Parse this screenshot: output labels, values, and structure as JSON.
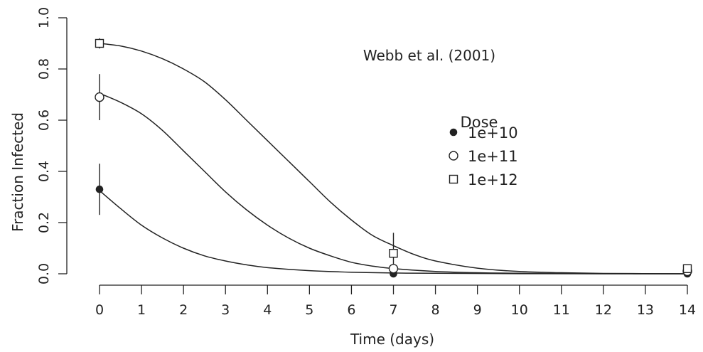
{
  "chart_data": {
    "type": "scatter",
    "xlabel": "Time (days)",
    "ylabel": "Fraction Infected",
    "xlim": [
      0,
      14
    ],
    "ylim": [
      0,
      1
    ],
    "x_ticks": [
      0,
      1,
      2,
      3,
      4,
      5,
      6,
      7,
      8,
      9,
      10,
      11,
      12,
      13,
      14
    ],
    "y_ticks": [
      0.0,
      0.2,
      0.4,
      0.6,
      0.8,
      1.0
    ],
    "y_tick_labels": [
      "0.0",
      "0.2",
      "0.4",
      "0.6",
      "0.8",
      "1.0"
    ],
    "grid": false,
    "annotation": "Webb et al. (2001)",
    "legend": {
      "title": "Dose",
      "placement": "right",
      "entries": [
        "1e+10",
        "1e+11",
        "1e+12"
      ]
    },
    "series": [
      {
        "name": "1e+10",
        "marker": "filled-circle",
        "points": [
          {
            "x": 0,
            "y": 0.33,
            "lo": 0.23,
            "hi": 0.43
          },
          {
            "x": 7,
            "y": 0.0
          },
          {
            "x": 14,
            "y": 0.0
          }
        ],
        "fit": [
          {
            "x": 0,
            "y": 0.325
          },
          {
            "x": 0.5,
            "y": 0.255
          },
          {
            "x": 1,
            "y": 0.19
          },
          {
            "x": 1.5,
            "y": 0.14
          },
          {
            "x": 2,
            "y": 0.1
          },
          {
            "x": 2.5,
            "y": 0.07
          },
          {
            "x": 3,
            "y": 0.05
          },
          {
            "x": 3.5,
            "y": 0.035
          },
          {
            "x": 4,
            "y": 0.024
          },
          {
            "x": 5,
            "y": 0.012
          },
          {
            "x": 6,
            "y": 0.006
          },
          {
            "x": 7,
            "y": 0.003
          },
          {
            "x": 8,
            "y": 0.002
          },
          {
            "x": 10,
            "y": 0.0005
          },
          {
            "x": 12,
            "y": 0.0001
          },
          {
            "x": 14,
            "y": 0.0
          }
        ]
      },
      {
        "name": "1e+11",
        "marker": "open-circle",
        "points": [
          {
            "x": 0,
            "y": 0.69,
            "lo": 0.6,
            "hi": 0.78
          },
          {
            "x": 7,
            "y": 0.02
          },
          {
            "x": 14,
            "y": 0.01
          }
        ],
        "fit": [
          {
            "x": 0,
            "y": 0.705
          },
          {
            "x": 0.5,
            "y": 0.67
          },
          {
            "x": 1,
            "y": 0.625
          },
          {
            "x": 1.5,
            "y": 0.56
          },
          {
            "x": 2,
            "y": 0.48
          },
          {
            "x": 2.5,
            "y": 0.4
          },
          {
            "x": 3,
            "y": 0.32
          },
          {
            "x": 3.5,
            "y": 0.25
          },
          {
            "x": 4,
            "y": 0.19
          },
          {
            "x": 4.5,
            "y": 0.14
          },
          {
            "x": 5,
            "y": 0.1
          },
          {
            "x": 5.5,
            "y": 0.07
          },
          {
            "x": 6,
            "y": 0.045
          },
          {
            "x": 6.5,
            "y": 0.03
          },
          {
            "x": 7,
            "y": 0.02
          },
          {
            "x": 8,
            "y": 0.009
          },
          {
            "x": 9,
            "y": 0.004
          },
          {
            "x": 10,
            "y": 0.002
          },
          {
            "x": 12,
            "y": 0.0004
          },
          {
            "x": 14,
            "y": 0.0
          }
        ]
      },
      {
        "name": "1e+12",
        "marker": "open-square",
        "points": [
          {
            "x": 0,
            "y": 0.9,
            "lo": 0.88,
            "hi": 0.92
          },
          {
            "x": 7,
            "y": 0.08,
            "lo": 0.0,
            "hi": 0.16
          },
          {
            "x": 14,
            "y": 0.02
          }
        ],
        "fit": [
          {
            "x": 0,
            "y": 0.9
          },
          {
            "x": 0.5,
            "y": 0.89
          },
          {
            "x": 1,
            "y": 0.87
          },
          {
            "x": 1.5,
            "y": 0.84
          },
          {
            "x": 2,
            "y": 0.8
          },
          {
            "x": 2.5,
            "y": 0.75
          },
          {
            "x": 3,
            "y": 0.68
          },
          {
            "x": 3.5,
            "y": 0.6
          },
          {
            "x": 4,
            "y": 0.52
          },
          {
            "x": 4.5,
            "y": 0.44
          },
          {
            "x": 5,
            "y": 0.36
          },
          {
            "x": 5.5,
            "y": 0.28
          },
          {
            "x": 6,
            "y": 0.21
          },
          {
            "x": 6.5,
            "y": 0.15
          },
          {
            "x": 7,
            "y": 0.11
          },
          {
            "x": 7.5,
            "y": 0.075
          },
          {
            "x": 8,
            "y": 0.05
          },
          {
            "x": 9,
            "y": 0.022
          },
          {
            "x": 10,
            "y": 0.009
          },
          {
            "x": 11,
            "y": 0.004
          },
          {
            "x": 12,
            "y": 0.0015
          },
          {
            "x": 14,
            "y": 0.0
          }
        ]
      }
    ]
  }
}
